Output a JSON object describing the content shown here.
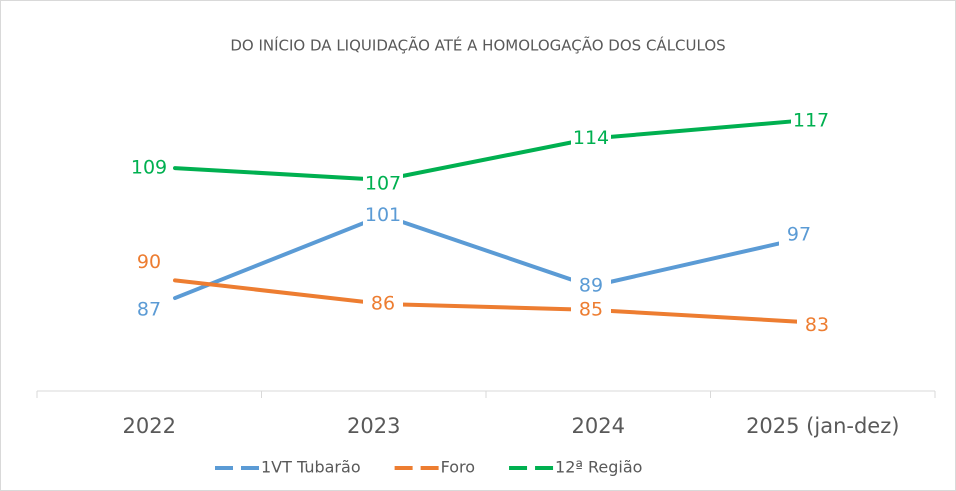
{
  "chart_data": {
    "type": "line",
    "title": "DO INÍCIO DA LIQUIDAÇÃO ATÉ A HOMOLOGAÇÃO DOS CÁLCULOS",
    "categories": [
      "2022",
      "2023",
      "2024",
      "2025 (jan-dez)"
    ],
    "series": [
      {
        "name": "1VT Tubarão",
        "color": "#5b9bd5",
        "values": [
          87,
          101,
          89,
          97
        ]
      },
      {
        "name": "Foro",
        "color": "#ed7d31",
        "values": [
          90,
          86,
          85,
          83
        ]
      },
      {
        "name": "12ª Região",
        "color": "#00b050",
        "values": [
          109,
          107,
          114,
          117
        ]
      }
    ],
    "ylim": [
      70,
      130
    ],
    "legend": "bottom"
  }
}
